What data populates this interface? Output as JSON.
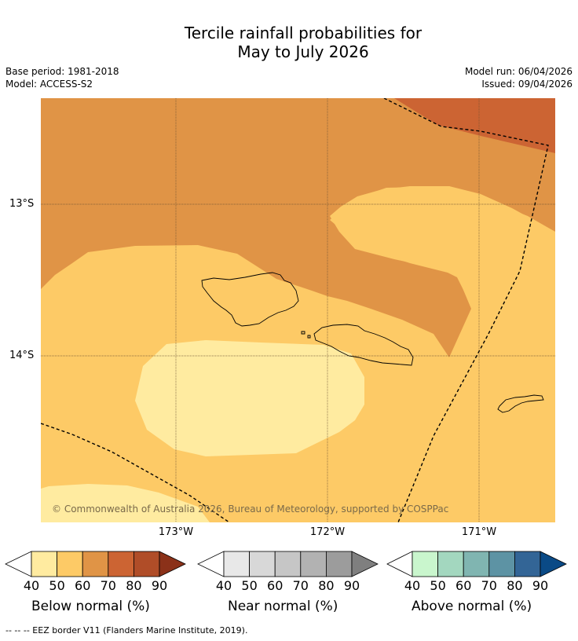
{
  "title": {
    "line1": "Tercile rainfall probabilities for",
    "line2": "May to July 2026"
  },
  "meta": {
    "base_period": "Base period: 1981-2018",
    "model": "Model: ACCESS-S2",
    "model_run": "Model run: 06/04/2026",
    "issued": "Issued: 09/04/2026"
  },
  "map": {
    "lat_labels": [
      "13°S",
      "14°S"
    ],
    "lon_labels": [
      "173°W",
      "172°W",
      "171°W"
    ],
    "copyright": "© Commonwealth of Australia 2026, Bureau of Meteorology, supported by COSPPac",
    "colors": {
      "below_40_50": "#ffeba0",
      "below_50_60": "#fdca66",
      "below_60_70": "#e09446",
      "below_70_80": "#cc6433",
      "land_outline": "#000000",
      "graticule": "#6b5233"
    }
  },
  "legends": [
    {
      "title": "Below normal (%)",
      "ticks": [
        "40",
        "50",
        "60",
        "70",
        "80",
        "90"
      ],
      "colors": [
        "#ffeba0",
        "#fdca66",
        "#e09446",
        "#cc6433",
        "#b04d28",
        "#8b3119"
      ]
    },
    {
      "title": "Near normal (%)",
      "ticks": [
        "40",
        "50",
        "60",
        "70",
        "80",
        "90"
      ],
      "colors": [
        "#e8e8e8",
        "#d8d8d8",
        "#c6c6c6",
        "#b2b2b2",
        "#9c9c9c",
        "#7f7f7f"
      ]
    },
    {
      "title": "Above normal (%)",
      "ticks": [
        "40",
        "50",
        "60",
        "70",
        "80",
        "90"
      ],
      "colors": [
        "#c9f6cd",
        "#a3d7bf",
        "#80b5b1",
        "#5d93a4",
        "#336596",
        "#0a4a86"
      ]
    }
  ],
  "footer": "--  --  -- EEZ border V11 (Flanders Marine Institute, 2019)."
}
